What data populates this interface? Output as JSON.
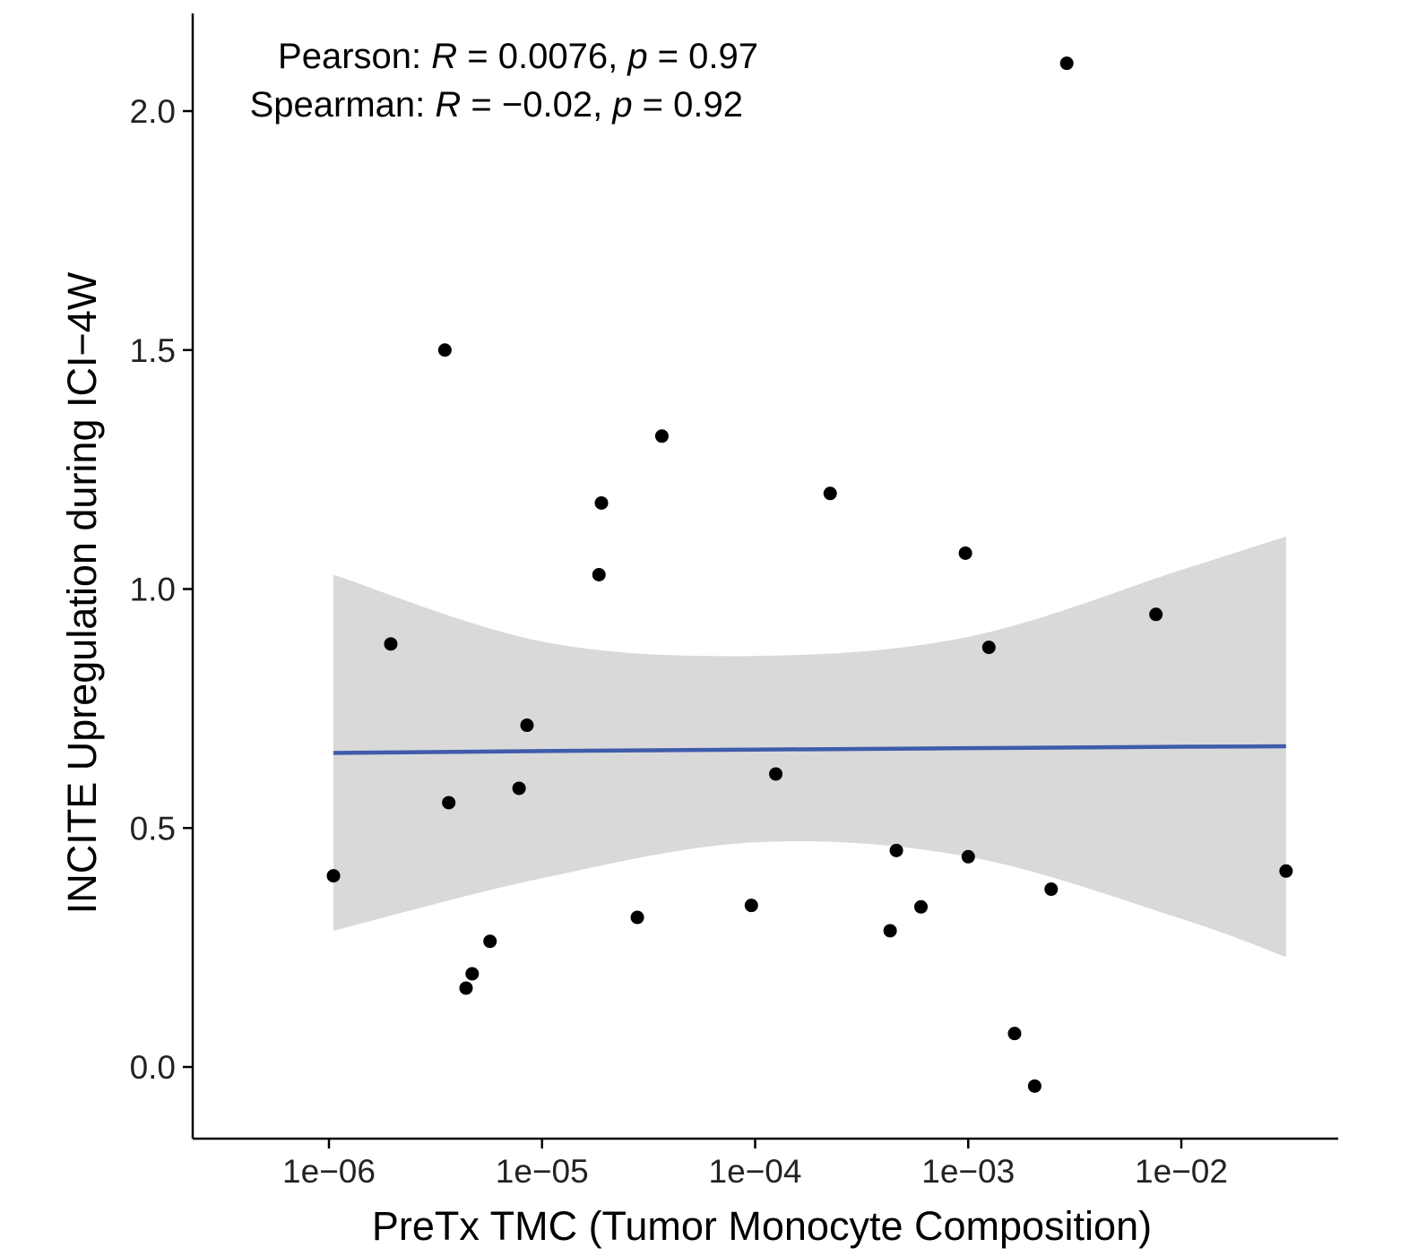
{
  "chart_data": {
    "type": "scatter",
    "xlabel": "PreTx TMC (Tumor Monocyte Composition)",
    "ylabel": "INCITE Upregulation during ICI−4W",
    "x_scale": "log10",
    "xlim": [
      4e-07,
      0.1
    ],
    "ylim": [
      -0.15,
      2.2
    ],
    "x_ticks": [
      1e-06,
      1e-05,
      0.0001,
      0.001,
      0.01
    ],
    "x_tick_labels": [
      "1e−06",
      "1e−05",
      "1e−04",
      "1e−03",
      "1e−02"
    ],
    "y_ticks": [
      0.0,
      0.5,
      1.0,
      1.5,
      2.0
    ],
    "y_tick_labels": [
      "0.0",
      "0.5",
      "1.0",
      "1.5",
      "2.0"
    ],
    "grid": false,
    "annotations": {
      "pearson": {
        "prefix": "Pearson: ",
        "r_symbol": "R",
        "r_value": " = 0.0076, ",
        "p_symbol": "p",
        "p_value": " = 0.97"
      },
      "spearman": {
        "prefix": "Spearman: ",
        "r_symbol": "R",
        "r_value": " = −0.02, ",
        "p_symbol": "p",
        "p_value": " = 0.92"
      }
    },
    "points": [
      {
        "x": 1.05e-06,
        "y": 0.4
      },
      {
        "x": 1.95e-06,
        "y": 0.885
      },
      {
        "x": 3.5e-06,
        "y": 1.5
      },
      {
        "x": 3.65e-06,
        "y": 0.553
      },
      {
        "x": 4.4e-06,
        "y": 0.165
      },
      {
        "x": 4.7e-06,
        "y": 0.195
      },
      {
        "x": 5.7e-06,
        "y": 0.263
      },
      {
        "x": 7.8e-06,
        "y": 0.583
      },
      {
        "x": 8.5e-06,
        "y": 0.715
      },
      {
        "x": 1.85e-05,
        "y": 1.03
      },
      {
        "x": 1.9e-05,
        "y": 1.18
      },
      {
        "x": 2.8e-05,
        "y": 0.313
      },
      {
        "x": 3.65e-05,
        "y": 1.32
      },
      {
        "x": 9.6e-05,
        "y": 0.338
      },
      {
        "x": 0.000125,
        "y": 0.613
      },
      {
        "x": 0.000225,
        "y": 1.2
      },
      {
        "x": 0.00043,
        "y": 0.285
      },
      {
        "x": 0.00046,
        "y": 0.453
      },
      {
        "x": 0.0006,
        "y": 0.335
      },
      {
        "x": 0.00097,
        "y": 1.075
      },
      {
        "x": 0.001,
        "y": 0.44
      },
      {
        "x": 0.00125,
        "y": 0.878
      },
      {
        "x": 0.00165,
        "y": 0.07
      },
      {
        "x": 0.00205,
        "y": -0.04
      },
      {
        "x": 0.00245,
        "y": 0.372
      },
      {
        "x": 0.0029,
        "y": 2.1
      },
      {
        "x": 0.0076,
        "y": 0.947
      },
      {
        "x": 0.031,
        "y": 0.41
      }
    ],
    "fit": {
      "method": "linear",
      "line_color": "#3f5bab",
      "band_color": "#d9d9d9",
      "x": [
        1.05e-06,
        1e-05,
        0.0001,
        0.001,
        0.01,
        0.031
      ],
      "y": [
        0.657,
        0.661,
        0.664,
        0.667,
        0.67,
        0.671
      ],
      "ci_lower": [
        0.285,
        0.395,
        0.47,
        0.44,
        0.31,
        0.23
      ],
      "ci_upper": [
        1.03,
        0.89,
        0.86,
        0.9,
        1.04,
        1.11
      ]
    },
    "point_color": "#000000"
  }
}
